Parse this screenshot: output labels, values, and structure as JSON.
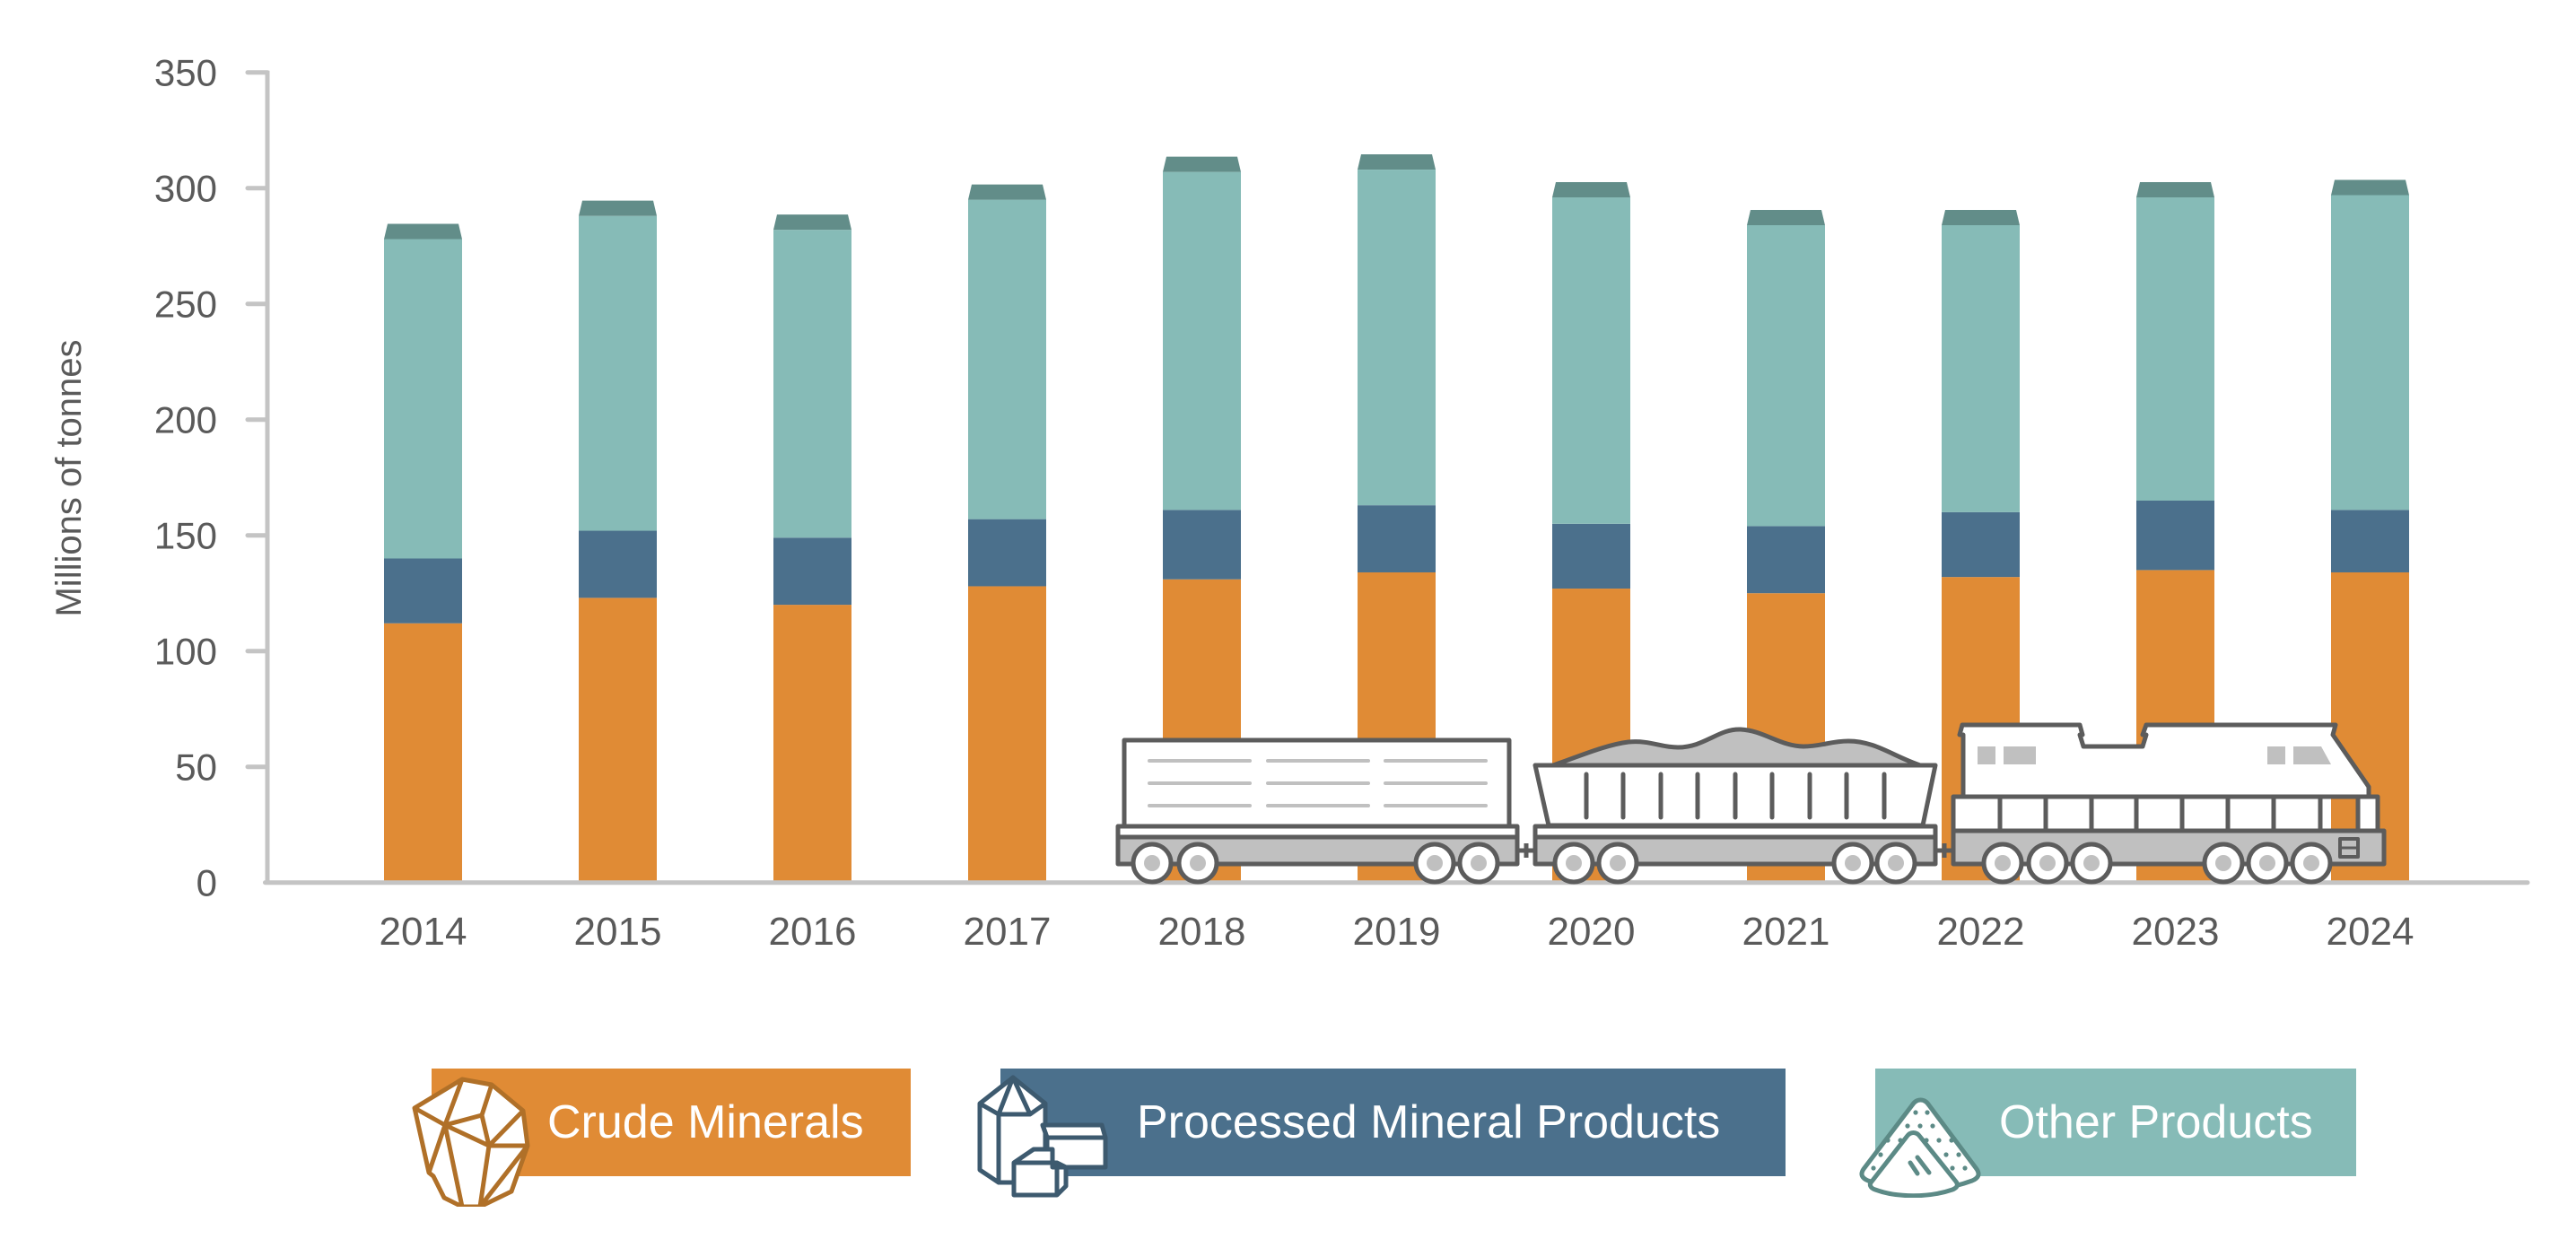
{
  "chart_data": {
    "type": "bar",
    "stacked": true,
    "title": "",
    "xlabel": "",
    "ylabel": "Millions of tonnes",
    "ylim": [
      0,
      350
    ],
    "yticks": [
      0,
      50,
      100,
      150,
      200,
      250,
      300,
      350
    ],
    "categories": [
      "2014",
      "2015",
      "2016",
      "2017",
      "2018",
      "2019",
      "2020",
      "2021",
      "2022",
      "2023",
      "2024"
    ],
    "series": [
      {
        "name": "Crude Minerals",
        "color": "#e08b35",
        "values": [
          112,
          123,
          120,
          128,
          131,
          134,
          127,
          125,
          132,
          135,
          134
        ]
      },
      {
        "name": "Processed Mineral Products",
        "color": "#4b708c",
        "values": [
          28,
          29,
          29,
          29,
          30,
          29,
          28,
          29,
          28,
          30,
          27
        ]
      },
      {
        "name": "Other Products",
        "color": "#86bbb7",
        "values": [
          138,
          136,
          133,
          138,
          146,
          145,
          141,
          130,
          124,
          131,
          136
        ]
      }
    ],
    "cap_color": "#628d89",
    "grid": false,
    "legend_position": "bottom"
  },
  "colors": {
    "axis": "#c4c4c4",
    "text": "#5a5a5a",
    "train_stroke": "#5c5c5c",
    "train_fill": "#c0c0c0",
    "rock_icon": "#b07028",
    "processed_icon": "#3d5a6f",
    "other_icon": "#5c8a86"
  },
  "legend": [
    {
      "label": "Crude Minerals",
      "icon": "rock-icon",
      "color": "#e08b35"
    },
    {
      "label": "Processed Mineral Products",
      "icon": "crystal-boxes-icon",
      "color": "#4b708c"
    },
    {
      "label": "Other Products",
      "icon": "sand-pile-icon",
      "color": "#86bbb7"
    }
  ]
}
